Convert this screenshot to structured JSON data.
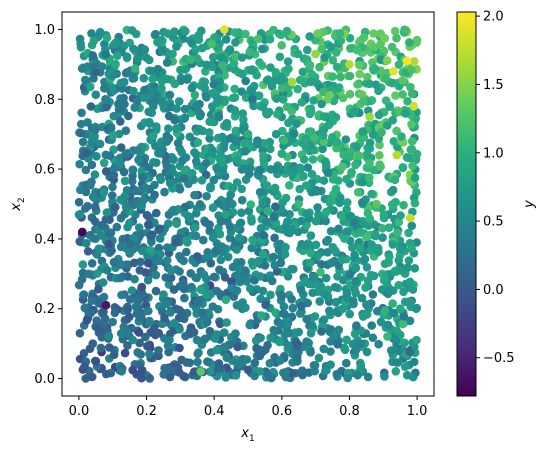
{
  "chart_data": {
    "type": "scatter",
    "title": "",
    "xlabel": "x1",
    "ylabel": "x2",
    "xlim": [
      -0.05,
      1.05
    ],
    "ylim": [
      -0.05,
      1.05
    ],
    "x_ticks": [
      "0.0",
      "0.2",
      "0.4",
      "0.6",
      "0.8",
      "1.0"
    ],
    "y_ticks": [
      "0.0",
      "0.2",
      "0.4",
      "0.6",
      "0.8",
      "1.0"
    ],
    "colorbar": {
      "label": "y",
      "range": [
        -0.78,
        2.03
      ],
      "colormap": "viridis",
      "ticks": [
        "−0.5",
        "0.0",
        "0.5",
        "1.0",
        "1.5",
        "2.0"
      ]
    },
    "grid": false,
    "trend": "color value y increases roughly with x1 + x2; highest values near the top-right corner",
    "points": [
      [
        0.01,
        0.42,
        -0.75
      ],
      [
        0.08,
        0.21,
        -0.6
      ],
      [
        0.43,
        1.0,
        1.9
      ],
      [
        0.97,
        0.91,
        2.0
      ],
      [
        0.93,
        0.88,
        1.9
      ],
      [
        0.8,
        0.9,
        1.7
      ],
      [
        0.99,
        0.78,
        1.8
      ],
      [
        0.94,
        0.64,
        1.7
      ],
      [
        0.98,
        0.46,
        1.75
      ],
      [
        0.63,
        0.85,
        1.6
      ],
      [
        0.7,
        0.93,
        1.55
      ],
      [
        0.86,
        0.75,
        1.6
      ],
      [
        0.27,
        0.56,
        0.55
      ],
      [
        0.35,
        0.22,
        0.3
      ],
      [
        0.22,
        0.78,
        0.5
      ],
      [
        0.95,
        0.2,
        0.9
      ],
      [
        0.5,
        0.7,
        1.0
      ],
      [
        0.78,
        0.2,
        0.75
      ],
      [
        0.43,
        0.09,
        0.45
      ],
      [
        0.36,
        0.02,
        1.3
      ],
      [
        0.02,
        0.0,
        0.1
      ],
      [
        0.05,
        0.05,
        -0.1
      ],
      [
        0.18,
        0.31,
        0.1
      ],
      [
        0.39,
        0.33,
        0.15
      ],
      [
        0.42,
        0.03,
        0.2
      ],
      [
        0.35,
        0.35,
        0.1
      ],
      [
        0.65,
        0.5,
        1.1
      ],
      [
        0.88,
        0.5,
        1.3
      ]
    ]
  }
}
